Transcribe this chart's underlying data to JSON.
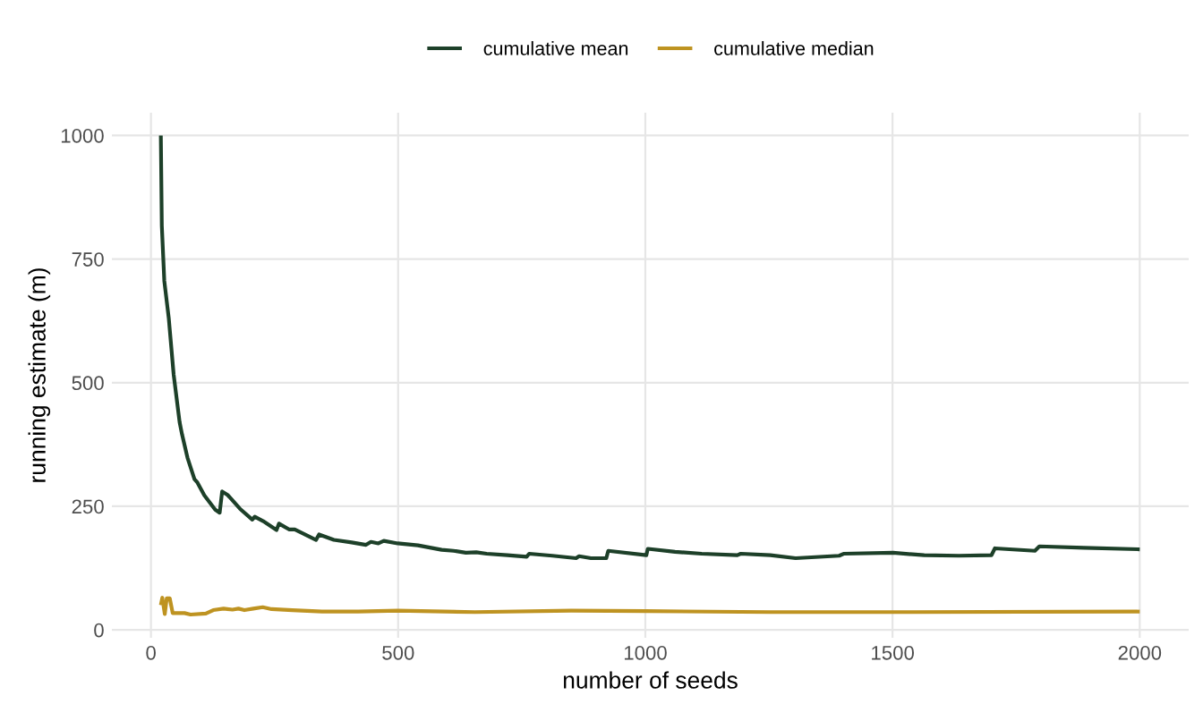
{
  "chart_data": {
    "type": "line",
    "xlabel": "number of seeds",
    "ylabel": "running estimate (m)",
    "xlim": [
      -79,
      2099
    ],
    "ylim": [
      -16,
      1046
    ],
    "xticks": [
      0,
      500,
      1000,
      1500,
      2000
    ],
    "yticks": [
      0,
      250,
      500,
      750,
      1000
    ],
    "grid": true,
    "legend": "top",
    "series": [
      {
        "name": "cumulative mean",
        "color": "#1d4029",
        "x": [
          20,
          22,
          27,
          36,
          46,
          58,
          63,
          74,
          88,
          94,
          108,
          130,
          139,
          144,
          155,
          180,
          205,
          210,
          227,
          254,
          259,
          280,
          291,
          334,
          340,
          370,
          406,
          435,
          445,
          460,
          471,
          499,
          540,
          588,
          612,
          637,
          658,
          679,
          721,
          760,
          765,
          812,
          860,
          866,
          890,
          921,
          925,
          1002,
          1005,
          1060,
          1114,
          1186,
          1193,
          1253,
          1304,
          1392,
          1401,
          1501,
          1564,
          1634,
          1700,
          1707,
          1788,
          1797,
          1887,
          2000
        ],
        "values": [
          1000,
          817,
          706,
          631,
          516,
          420,
          395,
          348,
          305,
          298,
          272,
          243,
          237,
          280,
          273,
          245,
          223,
          229,
          220,
          202,
          215,
          203,
          203,
          182,
          193,
          182,
          177,
          172,
          178,
          175,
          180,
          175,
          171,
          162,
          160,
          156,
          157,
          154,
          151,
          148,
          154,
          150,
          145,
          149,
          145,
          145,
          160,
          151,
          164,
          158,
          154,
          151,
          154,
          151,
          145,
          150,
          154,
          156,
          151,
          150,
          151,
          165,
          160,
          169,
          166,
          163
        ]
      },
      {
        "name": "cumulative median",
        "color": "#be9321",
        "x": [
          20,
          23,
          28,
          32,
          38,
          44,
          68,
          80,
          111,
          126,
          147,
          165,
          177,
          189,
          207,
          226,
          244,
          286,
          346,
          419,
          499,
          655,
          850,
          1000,
          1253,
          1500,
          2000
        ],
        "values": [
          50,
          65,
          32,
          64,
          64,
          34,
          34,
          31,
          33,
          40,
          43,
          41,
          43,
          40,
          43,
          46,
          42,
          40,
          37,
          37,
          39,
          36,
          39,
          38,
          36,
          36,
          37
        ]
      }
    ]
  }
}
